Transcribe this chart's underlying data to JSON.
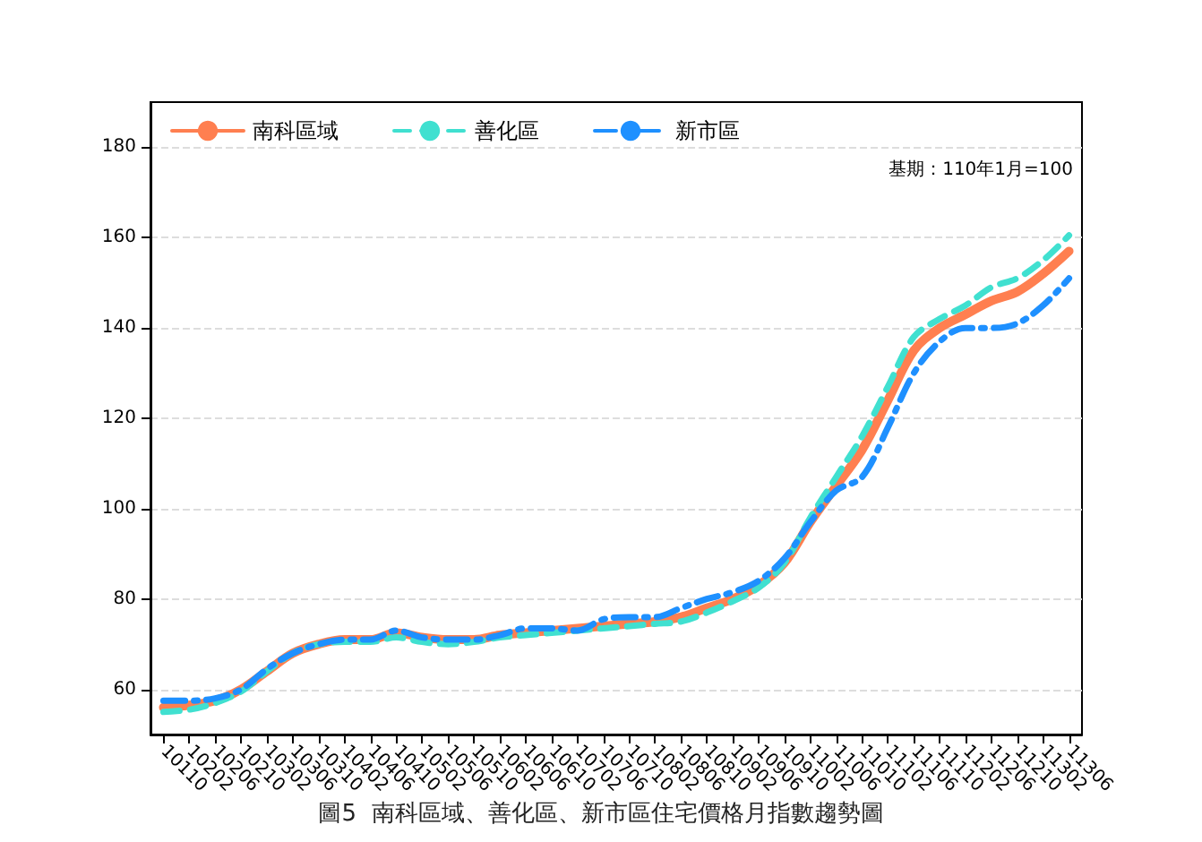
{
  "chart_data": {
    "type": "line",
    "title": "圖5  南科區域、善化區、新市區住宅價格月指數趨勢圖",
    "annotations": [
      "基期：110年1月=100"
    ],
    "categories": [
      "10110",
      "10202",
      "10206",
      "10210",
      "10302",
      "10306",
      "10310",
      "10402",
      "10406",
      "10410",
      "10502",
      "10506",
      "10510",
      "10602",
      "10606",
      "10610",
      "10702",
      "10706",
      "10710",
      "10802",
      "10806",
      "10810",
      "10902",
      "10906",
      "10910",
      "11002",
      "11006",
      "11010",
      "11102",
      "11106",
      "11110",
      "11202",
      "11206",
      "11210",
      "11302",
      "11306"
    ],
    "series": [
      {
        "name": "南科區域",
        "color": "#ff7f50",
        "line_style": "solid",
        "values": [
          56,
          56.5,
          57.5,
          60,
          64,
          68,
          70,
          71,
          71,
          72.5,
          71.5,
          71,
          71,
          72,
          72.5,
          73,
          73.5,
          74,
          74.5,
          75,
          76,
          78,
          80,
          83,
          88,
          97,
          105,
          113,
          124,
          135,
          140,
          143,
          146,
          148,
          152,
          157
        ]
      },
      {
        "name": "善化區",
        "color": "#40e0d0",
        "line_style": "dashed",
        "values": [
          55,
          55.5,
          57,
          59.5,
          64,
          68,
          70,
          70.5,
          70.5,
          71.5,
          70.5,
          70,
          70.5,
          71.5,
          72,
          72.5,
          73,
          73.5,
          74,
          74.5,
          75,
          77,
          79.5,
          82.5,
          88,
          98,
          107,
          116,
          127,
          138,
          142,
          145,
          149,
          151,
          155,
          160.5
        ]
      },
      {
        "name": "新市區",
        "color": "#1e90ff",
        "line_style": "dotted",
        "values": [
          57.5,
          57.5,
          58,
          60,
          64.5,
          68,
          70,
          71,
          71,
          73,
          71.5,
          71,
          71,
          72,
          73.5,
          73.5,
          73,
          75.5,
          76,
          76,
          78,
          80,
          81.5,
          84,
          89,
          97,
          104,
          107,
          118,
          130,
          137,
          140,
          140,
          141,
          145,
          151
        ]
      }
    ],
    "ylim": [
      50,
      190
    ],
    "yticks": [
      60,
      80,
      100,
      120,
      140,
      160,
      180
    ],
    "grid": "y",
    "legend": "top left",
    "marker": "none"
  }
}
